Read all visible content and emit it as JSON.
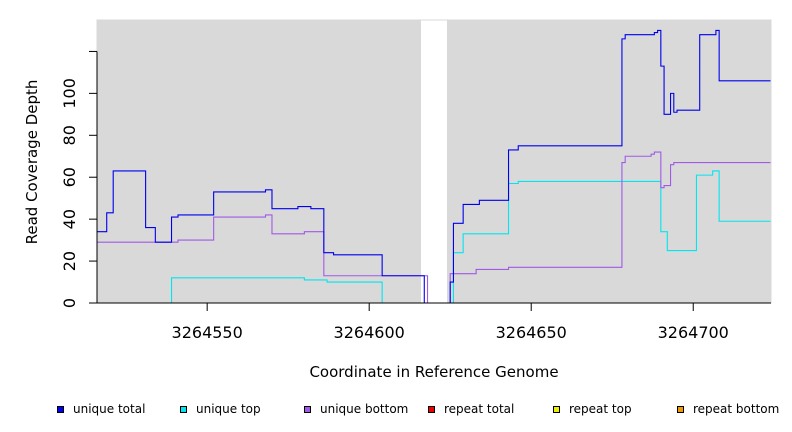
{
  "chart_data": {
    "type": "line",
    "title": "",
    "xlabel": "Coordinate in Reference Genome",
    "ylabel": "Read Coverage Depth",
    "xlim": [
      3264516,
      3264724
    ],
    "ylim": [
      0,
      135
    ],
    "x_ticks": [
      3264550,
      3264600,
      3264650,
      3264700
    ],
    "y_ticks": [
      0,
      20,
      40,
      60,
      80,
      100,
      120
    ],
    "y_tick_labels": [
      "0",
      "20",
      "40",
      "60",
      "80",
      "100",
      ""
    ],
    "gap_region": [
      3264616,
      3264624
    ],
    "plot_background": "#d9d9d9",
    "gap_color": "#ffffff",
    "grid": false,
    "legend_position": "bottom",
    "series": [
      {
        "name": "unique total",
        "color": "#0000ee",
        "x": [
          3264516,
          3264519,
          3264521,
          3264531,
          3264534,
          3264539,
          3264541,
          3264552,
          3264568,
          3264570,
          3264578,
          3264582,
          3264586,
          3264589,
          3264604,
          3264617,
          3264618,
          3264620,
          3264622,
          3264624,
          3264625,
          3264626,
          3264627,
          3264629,
          3264631,
          3264634,
          3264643,
          3264646,
          3264658,
          3264678,
          3264679,
          3264687,
          3264688,
          3264689,
          3264690,
          3264691,
          3264693,
          3264694,
          3264695,
          3264697,
          3264702,
          3264706,
          3264707,
          3264708,
          3264710,
          3264724
        ],
        "y": [
          34,
          43,
          63,
          36,
          29,
          41,
          42,
          53,
          54,
          45,
          46,
          45,
          24,
          23,
          13,
          0,
          0,
          0,
          0,
          0,
          10,
          38,
          38,
          47,
          47,
          49,
          73,
          75,
          75,
          126,
          128,
          128,
          129,
          130,
          113,
          90,
          100,
          91,
          92,
          92,
          128,
          128,
          130,
          106,
          106,
          106
        ]
      },
      {
        "name": "unique top",
        "color": "#00e5ee",
        "x": [
          3264516,
          3264539,
          3264551,
          3264580,
          3264587,
          3264604,
          3264618,
          3264624,
          3264626,
          3264629,
          3264643,
          3264646,
          3264679,
          3264688,
          3264690,
          3264692,
          3264694,
          3264701,
          3264706,
          3264708,
          3264724
        ],
        "y": [
          0,
          12,
          12,
          11,
          10,
          0,
          0,
          0,
          24,
          33,
          57,
          58,
          58,
          58,
          34,
          25,
          25,
          61,
          63,
          39,
          39
        ]
      },
      {
        "name": "unique bottom",
        "color": "#a05ae6",
        "x": [
          3264516,
          3264534,
          3264539,
          3264541,
          3264552,
          3264568,
          3264570,
          3264580,
          3264586,
          3264589,
          3264604,
          3264617,
          3264618,
          3264624,
          3264625,
          3264626,
          3264633,
          3264643,
          3264646,
          3264678,
          3264679,
          3264687,
          3264688,
          3264689,
          3264690,
          3264691,
          3264693,
          3264694,
          3264697,
          3264724
        ],
        "y": [
          29,
          29,
          29,
          30,
          41,
          42,
          33,
          34,
          13,
          13,
          13,
          13,
          0,
          0,
          14,
          14,
          16,
          17,
          17,
          67,
          70,
          71,
          72,
          72,
          55,
          56,
          66,
          67,
          67,
          67
        ]
      },
      {
        "name": "repeat total",
        "color": "#ee0000",
        "x": [
          3264516,
          3264724
        ],
        "y": [
          0,
          0
        ]
      },
      {
        "name": "repeat top",
        "color": "#eeee00",
        "x": [
          3264516,
          3264724
        ],
        "y": [
          0,
          0
        ]
      },
      {
        "name": "repeat bottom",
        "color": "#ee9a00",
        "x": [
          3264516,
          3264724
        ],
        "y": [
          0,
          0
        ]
      }
    ]
  }
}
